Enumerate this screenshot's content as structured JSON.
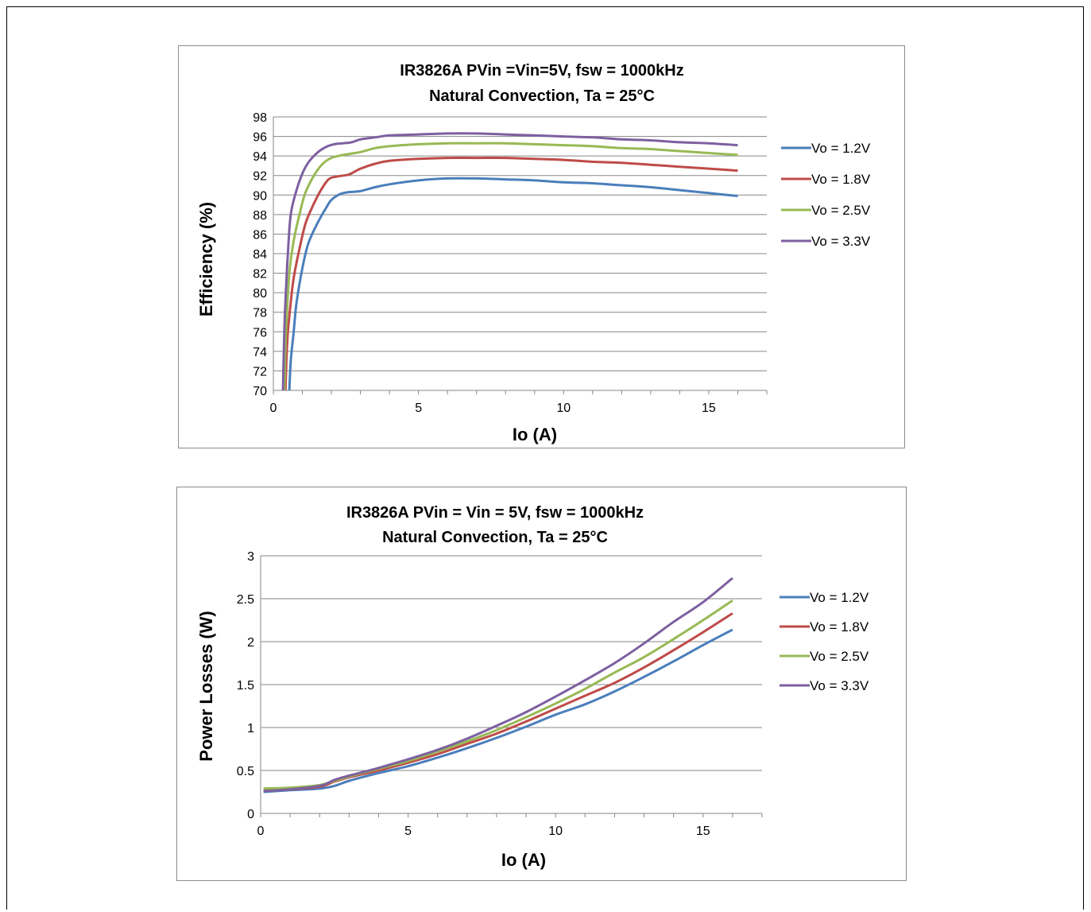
{
  "chart_data": [
    {
      "type": "line",
      "title": "IR3826A PVin =Vin=5V, fsw = 1000kHz",
      "subtitle": "Natural Convection, Ta = 25°C",
      "xlabel": "Io (A)",
      "ylabel": "Efficiency (%)",
      "xlim": [
        0,
        17
      ],
      "ylim": [
        70,
        98
      ],
      "x_ticks": [
        0,
        5,
        10,
        15
      ],
      "y_ticks": [
        70,
        72,
        74,
        76,
        78,
        80,
        82,
        84,
        86,
        88,
        90,
        92,
        94,
        96,
        98
      ],
      "grid": true,
      "legend_position": "right",
      "series": [
        {
          "name": "Vo = 1.2V",
          "color": "#4a7ebb",
          "x": [
            0.55,
            0.6,
            0.7,
            0.8,
            1.0,
            1.2,
            1.5,
            1.8,
            2.0,
            2.3,
            2.6,
            3.0,
            3.5,
            4.0,
            5.0,
            6.0,
            7.0,
            8.0,
            9.0,
            10.0,
            11.0,
            12.0,
            13.0,
            14.0,
            15.0,
            16.0
          ],
          "y": [
            70,
            73,
            76,
            79,
            82.5,
            85,
            87,
            88.6,
            89.5,
            90.1,
            90.3,
            90.4,
            90.8,
            91.1,
            91.5,
            91.7,
            91.7,
            91.6,
            91.5,
            91.3,
            91.2,
            91.0,
            90.8,
            90.5,
            90.2,
            89.9
          ]
        },
        {
          "name": "Vo = 1.8V",
          "color": "#be4b48",
          "x": [
            0.42,
            0.45,
            0.5,
            0.6,
            0.7,
            0.9,
            1.1,
            1.3,
            1.6,
            1.9,
            2.2,
            2.6,
            3.0,
            3.5,
            4.0,
            5.0,
            6.0,
            7.0,
            8.0,
            9.0,
            10.0,
            11.0,
            12.0,
            13.0,
            14.0,
            15.0,
            16.0
          ],
          "y": [
            70,
            73,
            76,
            79,
            81.5,
            84.5,
            87,
            88.5,
            90.3,
            91.6,
            91.9,
            92.1,
            92.7,
            93.2,
            93.5,
            93.7,
            93.8,
            93.8,
            93.8,
            93.7,
            93.6,
            93.4,
            93.3,
            93.1,
            92.9,
            92.7,
            92.5
          ]
        },
        {
          "name": "Vo = 2.5V",
          "color": "#98b954",
          "x": [
            0.38,
            0.41,
            0.45,
            0.55,
            0.7,
            0.9,
            1.1,
            1.4,
            1.7,
            2.0,
            2.4,
            3.0,
            3.5,
            4.0,
            5.0,
            6.0,
            7.0,
            8.0,
            9.0,
            10.0,
            11.0,
            12.0,
            13.0,
            14.0,
            15.0,
            16.0
          ],
          "y": [
            70,
            74,
            77,
            82,
            85.3,
            88,
            90.2,
            92,
            93.2,
            93.8,
            94.1,
            94.4,
            94.8,
            95.0,
            95.2,
            95.3,
            95.3,
            95.3,
            95.2,
            95.1,
            95.0,
            94.8,
            94.7,
            94.5,
            94.3,
            94.1
          ]
        },
        {
          "name": "Vo = 3.3V",
          "color": "#7d60a0",
          "x": [
            0.33,
            0.36,
            0.4,
            0.5,
            0.6,
            0.8,
            1.0,
            1.2,
            1.5,
            1.8,
            2.1,
            2.4,
            2.7,
            3.0,
            3.5,
            4.0,
            5.0,
            6.0,
            7.0,
            8.0,
            9.0,
            10.0,
            11.0,
            12.0,
            13.0,
            14.0,
            15.0,
            16.0
          ],
          "y": [
            70,
            74,
            78,
            84,
            88,
            90.5,
            92.2,
            93.3,
            94.3,
            94.9,
            95.2,
            95.3,
            95.4,
            95.7,
            95.9,
            96.1,
            96.2,
            96.3,
            96.3,
            96.2,
            96.1,
            96.0,
            95.9,
            95.7,
            95.6,
            95.4,
            95.3,
            95.1
          ]
        }
      ]
    },
    {
      "type": "line",
      "title": "IR3826A PVin = Vin = 5V, fsw = 1000kHz",
      "subtitle": "Natural Convection, Ta = 25°C",
      "xlabel": "Io (A)",
      "ylabel": "Power Losses (W)",
      "xlim": [
        0,
        17
      ],
      "ylim": [
        0,
        3
      ],
      "x_ticks": [
        0,
        5,
        10,
        15
      ],
      "y_ticks": [
        0,
        0.5,
        1,
        1.5,
        2,
        2.5,
        3
      ],
      "grid": true,
      "legend_position": "right",
      "series": [
        {
          "name": "Vo = 1.2V",
          "color": "#4a7ebb",
          "x": [
            0.1,
            1,
            2,
            2.5,
            3,
            4,
            5,
            6,
            7,
            8,
            9,
            10,
            11,
            12,
            13,
            14,
            15,
            16
          ],
          "y": [
            0.25,
            0.27,
            0.29,
            0.32,
            0.38,
            0.47,
            0.55,
            0.65,
            0.76,
            0.88,
            1.01,
            1.15,
            1.27,
            1.42,
            1.59,
            1.77,
            1.96,
            2.14
          ]
        },
        {
          "name": "Vo = 1.8V",
          "color": "#be4b48",
          "x": [
            0.1,
            1,
            2,
            2.5,
            3,
            4,
            5,
            6,
            7,
            8,
            9,
            10,
            11,
            12,
            13,
            14,
            15,
            16
          ],
          "y": [
            0.27,
            0.28,
            0.31,
            0.37,
            0.42,
            0.5,
            0.59,
            0.69,
            0.81,
            0.93,
            1.07,
            1.22,
            1.37,
            1.52,
            1.7,
            1.9,
            2.11,
            2.33
          ]
        },
        {
          "name": "Vo = 2.5V",
          "color": "#98b954",
          "x": [
            0.1,
            1,
            2,
            2.5,
            3,
            4,
            5,
            6,
            7,
            8,
            9,
            10,
            11,
            12,
            13,
            14,
            15,
            16
          ],
          "y": [
            0.29,
            0.3,
            0.33,
            0.38,
            0.43,
            0.52,
            0.61,
            0.72,
            0.84,
            0.97,
            1.12,
            1.28,
            1.45,
            1.64,
            1.82,
            2.03,
            2.25,
            2.48
          ]
        },
        {
          "name": "Vo = 3.3V",
          "color": "#7d60a0",
          "x": [
            0.1,
            1,
            2,
            2.5,
            3,
            4,
            5,
            6,
            7,
            8,
            9,
            10,
            11,
            12,
            13,
            14,
            15,
            16
          ],
          "y": [
            0.26,
            0.28,
            0.32,
            0.39,
            0.44,
            0.53,
            0.63,
            0.74,
            0.87,
            1.02,
            1.18,
            1.36,
            1.55,
            1.75,
            1.98,
            2.23,
            2.46,
            2.74
          ]
        }
      ]
    }
  ]
}
